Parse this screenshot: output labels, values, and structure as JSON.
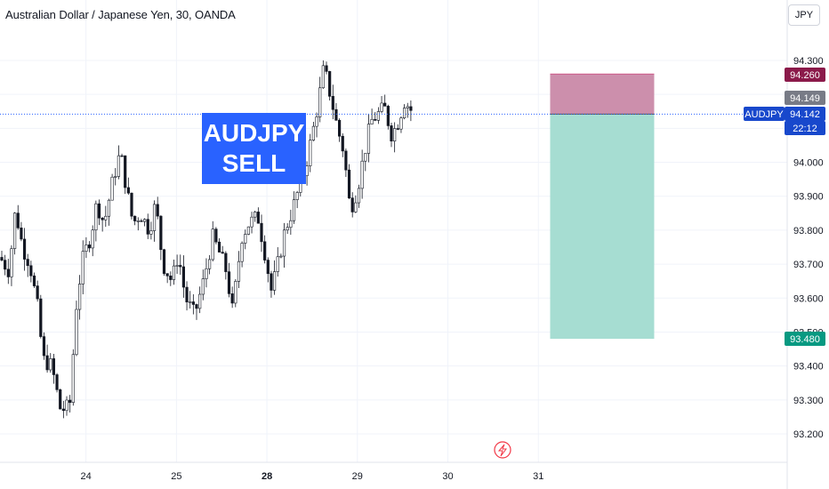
{
  "header": {
    "title": "Australian Dollar / Japanese Yen, 30, OANDA",
    "currency_button": "JPY"
  },
  "banner": {
    "line1": "AUDJPY",
    "line2": "SELL"
  },
  "price_labels": {
    "stop": {
      "text": "94.260",
      "color": "#8b1a4a"
    },
    "high": {
      "text": "94.149",
      "color": "#787b86"
    },
    "symbol": {
      "text": "AUDJPY",
      "color": "#1848cc"
    },
    "last": {
      "text": "94.142",
      "color": "#1848cc"
    },
    "countdown": {
      "text": "22:12",
      "color": "#1848cc"
    },
    "target": {
      "text": "93.480",
      "color": "#089981"
    }
  },
  "position": {
    "type": "short",
    "entry": 94.142,
    "stop": 94.26,
    "target": 93.48,
    "start_x": 29.13,
    "end_x": 30.28,
    "loss_color": "#cc8fac",
    "profit_color": "#a6ddd2"
  },
  "chart_data": {
    "type": "candlestick",
    "title": "Australian Dollar / Japanese Yen, 30, OANDA",
    "symbol": "AUDJPY",
    "timeframe": "30",
    "ylim": [
      93.16,
      94.37
    ],
    "xlim": [
      23.05,
      31.75
    ],
    "y_ticks": [
      "94.300",
      "94.200",
      "94.100",
      "94.000",
      "93.900",
      "93.800",
      "93.700",
      "93.600",
      "93.500",
      "93.400",
      "93.300",
      "93.200"
    ],
    "x_ticks": [
      {
        "x": 24,
        "label": "24"
      },
      {
        "x": 25,
        "label": "25"
      },
      {
        "x": 26,
        "label": "28"
      },
      {
        "x": 27,
        "label": "29"
      },
      {
        "x": 28,
        "label": "30"
      },
      {
        "x": 29,
        "label": "31"
      }
    ],
    "grid": true,
    "last_price": 94.142,
    "colors": {
      "candle": "#131722",
      "grid": "#f0f3fa",
      "axis_text": "#131722"
    },
    "anchors": [
      [
        23.05,
        93.72
      ],
      [
        23.15,
        93.68
      ],
      [
        23.22,
        93.86
      ],
      [
        23.3,
        93.75
      ],
      [
        23.38,
        93.7
      ],
      [
        23.48,
        93.55
      ],
      [
        23.52,
        93.42
      ],
      [
        23.62,
        93.4
      ],
      [
        23.72,
        93.27
      ],
      [
        23.82,
        93.28
      ],
      [
        23.9,
        93.6
      ],
      [
        23.97,
        93.72
      ],
      [
        24.05,
        93.78
      ],
      [
        24.12,
        93.88
      ],
      [
        24.2,
        93.82
      ],
      [
        24.3,
        93.95
      ],
      [
        24.38,
        94.03
      ],
      [
        24.45,
        93.92
      ],
      [
        24.52,
        93.82
      ],
      [
        24.6,
        93.85
      ],
      [
        24.7,
        93.8
      ],
      [
        24.77,
        93.88
      ],
      [
        24.85,
        93.7
      ],
      [
        24.95,
        93.65
      ],
      [
        25.02,
        93.73
      ],
      [
        25.1,
        93.6
      ],
      [
        25.2,
        93.55
      ],
      [
        25.3,
        93.65
      ],
      [
        25.4,
        93.78
      ],
      [
        25.48,
        93.73
      ],
      [
        25.55,
        93.68
      ],
      [
        25.62,
        93.56
      ],
      [
        25.72,
        93.78
      ],
      [
        25.8,
        93.82
      ],
      [
        25.9,
        93.84
      ],
      [
        25.98,
        93.73
      ],
      [
        26.05,
        93.62
      ],
      [
        26.12,
        93.7
      ],
      [
        26.2,
        93.8
      ],
      [
        26.27,
        93.85
      ],
      [
        26.35,
        93.92
      ],
      [
        26.42,
        93.98
      ],
      [
        26.5,
        94.08
      ],
      [
        26.57,
        94.18
      ],
      [
        26.63,
        94.28
      ],
      [
        26.7,
        94.2
      ],
      [
        26.78,
        94.1
      ],
      [
        26.85,
        94.03
      ],
      [
        26.92,
        93.86
      ],
      [
        27.0,
        93.92
      ],
      [
        27.07,
        94.02
      ],
      [
        27.15,
        94.12
      ],
      [
        27.22,
        94.14
      ],
      [
        27.3,
        94.16
      ],
      [
        27.38,
        94.08
      ],
      [
        27.45,
        94.12
      ],
      [
        27.52,
        94.18
      ],
      [
        27.58,
        94.16
      ],
      [
        27.62,
        94.14
      ]
    ]
  }
}
